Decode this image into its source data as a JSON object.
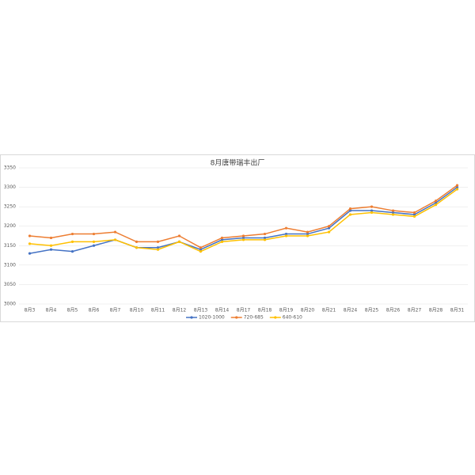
{
  "chart_data": {
    "type": "line",
    "title": "8月唐带瑞丰出厂",
    "categories": [
      "8月3",
      "8月4",
      "8月5",
      "8月6",
      "8月7",
      "8月10",
      "8月11",
      "8月12",
      "8月13",
      "8月14",
      "8月17",
      "8月18",
      "8月19",
      "8月20",
      "8月21",
      "8月24",
      "8月25",
      "8月26",
      "8月27",
      "8月28",
      "8月31"
    ],
    "series": [
      {
        "name": "1020-1000",
        "color": "#4472c4",
        "values": [
          3130,
          3140,
          3135,
          3150,
          3165,
          3145,
          3145,
          3160,
          3140,
          3165,
          3170,
          3170,
          3180,
          3180,
          3195,
          3240,
          3240,
          3235,
          3230,
          3260,
          3300
        ]
      },
      {
        "name": "720-685",
        "color": "#ed7d31",
        "values": [
          3175,
          3170,
          3180,
          3180,
          3185,
          3160,
          3160,
          3175,
          3145,
          3170,
          3175,
          3180,
          3195,
          3185,
          3200,
          3245,
          3250,
          3240,
          3235,
          3265,
          3305
        ]
      },
      {
        "name": "640-610",
        "color": "#ffc000",
        "values": [
          3155,
          3150,
          3160,
          3160,
          3165,
          3145,
          3140,
          3160,
          3135,
          3160,
          3165,
          3165,
          3175,
          3175,
          3185,
          3230,
          3235,
          3230,
          3225,
          3255,
          3295
        ]
      }
    ],
    "ylim": [
      3000,
      3350
    ],
    "yticks": [
      3000,
      3050,
      3100,
      3150,
      3200,
      3250,
      3300,
      3350
    ],
    "grid": true,
    "legend": "bottom"
  }
}
